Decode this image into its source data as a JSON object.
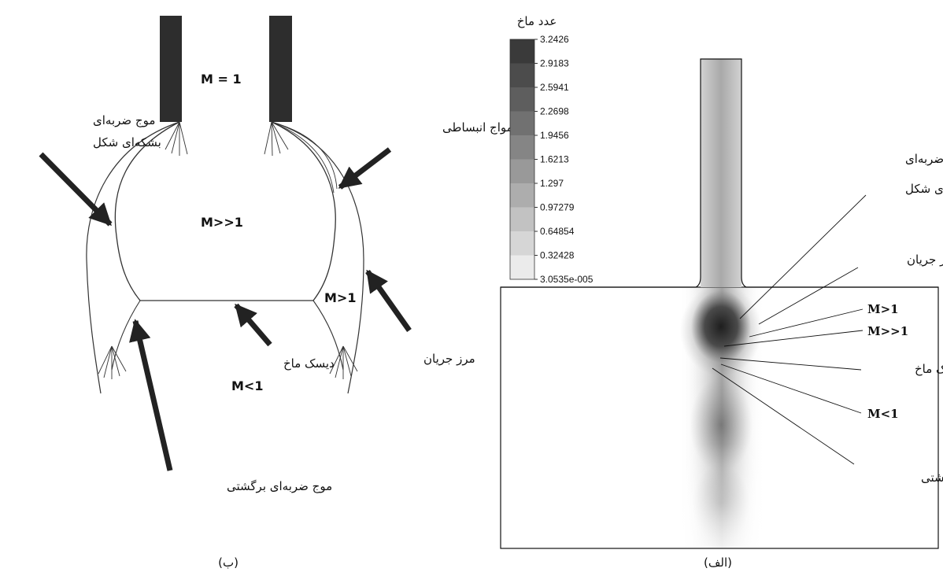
{
  "left_panel": {
    "caption": "(ب)",
    "labels": {
      "m_equal_1": "M = 1",
      "m_much_greater": "M>>1",
      "m_greater": "M>1",
      "m_less": "M<1",
      "barrel_shock_line1": "موج ضربه‌ای",
      "barrel_shock_line2": "بشکه‌ای شکل",
      "expansion_waves": "امواج انبساطی",
      "mach_disk": "دیسک ماخ",
      "jet_boundary": "مرز جریان",
      "reflected_shock": "موج ضربه‌ای برگشتی"
    }
  },
  "right_panel": {
    "caption": "(الف)",
    "colorbar": {
      "title": "عدد ماخ",
      "ticks": [
        "3.2426",
        "2.9183",
        "2.5941",
        "2.2698",
        "1.9456",
        "1.6213",
        "1.297",
        "0.97279",
        "0.64854",
        "0.32428",
        "3.0535e-005"
      ],
      "colors": [
        "#3a3a3a",
        "#4c4c4c",
        "#5e5e5e",
        "#717171",
        "#858585",
        "#999999",
        "#adadad",
        "#c2c2c2",
        "#d6d6d6",
        "#ebebeb"
      ]
    },
    "labels": {
      "barrel_shock_line1": "موج ضربه‌ای",
      "barrel_shock_line2": "بشکه‌ای شکل",
      "jet_boundary": "مرز جریان",
      "m_greater": "M>1",
      "m_much_greater": "M>>1",
      "mach_disk": "دیسک ماخ",
      "m_less": "M<1",
      "reflected_shock": "موج ضربه‌ای برگشتی"
    }
  }
}
